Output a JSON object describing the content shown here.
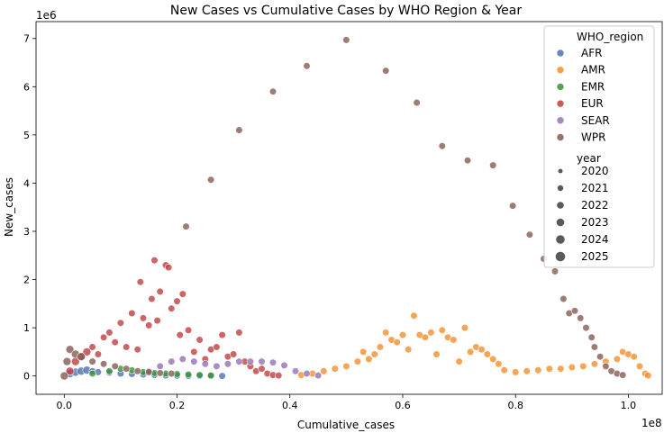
{
  "chart_data": {
    "type": "scatter",
    "title": "New Cases vs Cumulative Cases by WHO Region & Year",
    "xlabel": "Cumulative_cases",
    "ylabel": "New_cases",
    "x_offset_label": "1e8",
    "y_offset_label": "1e6",
    "xlim": [
      -0.05,
      1.06
    ],
    "ylim": [
      -0.38,
      7.35
    ],
    "x_ticks": [
      0.0,
      0.2,
      0.4,
      0.6,
      0.8,
      1.0
    ],
    "x_tick_labels": [
      "0.0",
      "0.2",
      "0.4",
      "0.6",
      "0.8",
      "1.0"
    ],
    "y_ticks": [
      0,
      1,
      2,
      3,
      4,
      5,
      6,
      7
    ],
    "y_tick_labels": [
      "0",
      "1",
      "2",
      "3",
      "4",
      "5",
      "6",
      "7"
    ],
    "grid": false,
    "legend_placement": "top-right",
    "legend": {
      "hue_title": "WHO_region",
      "hue_entries": [
        {
          "label": "AFR",
          "color": "#4c72b0"
        },
        {
          "label": "AMR",
          "color": "#f28e2b"
        },
        {
          "label": "EMR",
          "color": "#3a923a"
        },
        {
          "label": "EUR",
          "color": "#c03d3e"
        },
        {
          "label": "SEAR",
          "color": "#9372b2"
        },
        {
          "label": "WPR",
          "color": "#845b53"
        }
      ],
      "size_title": "year",
      "size_entries": [
        {
          "label": "2020",
          "size": 2.5
        },
        {
          "label": "2021",
          "size": 3.2
        },
        {
          "label": "2022",
          "size": 3.8
        },
        {
          "label": "2023",
          "size": 4.3
        },
        {
          "label": "2024",
          "size": 4.8
        },
        {
          "label": "2025",
          "size": 5.3
        }
      ]
    },
    "series": [
      {
        "name": "AFR",
        "color": "#4c72b0",
        "points": [
          [
            0.01,
            0.05
          ],
          [
            0.02,
            0.08
          ],
          [
            0.03,
            0.1
          ],
          [
            0.04,
            0.12
          ],
          [
            0.05,
            0.1
          ],
          [
            0.06,
            0.08
          ],
          [
            0.08,
            0.07
          ],
          [
            0.1,
            0.05
          ],
          [
            0.12,
            0.04
          ],
          [
            0.14,
            0.03
          ],
          [
            0.16,
            0.02
          ],
          [
            0.18,
            0.01
          ],
          [
            0.2,
            0.005
          ],
          [
            0.22,
            0.0
          ],
          [
            0.24,
            0.0
          ],
          [
            0.26,
            0.0
          ],
          [
            0.28,
            0.0
          ]
        ]
      },
      {
        "name": "AMR",
        "color": "#f28e2b",
        "points": [
          [
            0.42,
            0.02
          ],
          [
            0.44,
            0.05
          ],
          [
            0.46,
            0.1
          ],
          [
            0.48,
            0.15
          ],
          [
            0.5,
            0.2
          ],
          [
            0.52,
            0.3
          ],
          [
            0.53,
            0.5
          ],
          [
            0.54,
            0.35
          ],
          [
            0.55,
            0.45
          ],
          [
            0.56,
            0.6
          ],
          [
            0.57,
            0.9
          ],
          [
            0.58,
            0.75
          ],
          [
            0.59,
            0.7
          ],
          [
            0.6,
            0.85
          ],
          [
            0.61,
            0.55
          ],
          [
            0.62,
            1.25
          ],
          [
            0.63,
            0.85
          ],
          [
            0.64,
            0.8
          ],
          [
            0.65,
            0.9
          ],
          [
            0.66,
            0.45
          ],
          [
            0.67,
            0.95
          ],
          [
            0.68,
            0.8
          ],
          [
            0.69,
            0.75
          ],
          [
            0.7,
            0.3
          ],
          [
            0.71,
            1.0
          ],
          [
            0.72,
            0.5
          ],
          [
            0.73,
            0.6
          ],
          [
            0.74,
            0.55
          ],
          [
            0.75,
            0.45
          ],
          [
            0.76,
            0.35
          ],
          [
            0.77,
            0.25
          ],
          [
            0.78,
            0.12
          ],
          [
            0.8,
            0.08
          ],
          [
            0.82,
            0.1
          ],
          [
            0.84,
            0.12
          ],
          [
            0.86,
            0.15
          ],
          [
            0.88,
            0.15
          ],
          [
            0.9,
            0.18
          ],
          [
            0.92,
            0.2
          ],
          [
            0.94,
            0.25
          ],
          [
            0.96,
            0.3
          ],
          [
            0.98,
            0.35
          ],
          [
            0.99,
            0.5
          ],
          [
            1.0,
            0.45
          ],
          [
            1.01,
            0.4
          ],
          [
            1.02,
            0.2
          ],
          [
            1.03,
            0.05
          ],
          [
            1.035,
            0.01
          ]
        ]
      },
      {
        "name": "EMR",
        "color": "#3a923a",
        "points": [
          [
            0.05,
            0.05
          ],
          [
            0.08,
            0.1
          ],
          [
            0.1,
            0.15
          ],
          [
            0.12,
            0.12
          ],
          [
            0.14,
            0.08
          ],
          [
            0.16,
            0.06
          ],
          [
            0.18,
            0.05
          ],
          [
            0.2,
            0.04
          ],
          [
            0.22,
            0.03
          ],
          [
            0.24,
            0.02
          ],
          [
            0.26,
            0.01
          ]
        ]
      },
      {
        "name": "EUR",
        "color": "#c03d3e",
        "points": [
          [
            0.01,
            0.1
          ],
          [
            0.02,
            0.3
          ],
          [
            0.03,
            0.4
          ],
          [
            0.04,
            0.5
          ],
          [
            0.05,
            0.6
          ],
          [
            0.06,
            0.45
          ],
          [
            0.07,
            0.8
          ],
          [
            0.08,
            0.9
          ],
          [
            0.09,
            0.7
          ],
          [
            0.1,
            1.1
          ],
          [
            0.11,
            0.6
          ],
          [
            0.12,
            1.3
          ],
          [
            0.13,
            0.55
          ],
          [
            0.135,
            1.95
          ],
          [
            0.14,
            1.2
          ],
          [
            0.15,
            1.05
          ],
          [
            0.155,
            1.6
          ],
          [
            0.16,
            2.4
          ],
          [
            0.165,
            1.15
          ],
          [
            0.17,
            1.75
          ],
          [
            0.18,
            2.3
          ],
          [
            0.185,
            2.25
          ],
          [
            0.19,
            1.4
          ],
          [
            0.2,
            1.55
          ],
          [
            0.205,
            0.85
          ],
          [
            0.21,
            1.7
          ],
          [
            0.22,
            0.95
          ],
          [
            0.23,
            0.5
          ],
          [
            0.24,
            0.75
          ],
          [
            0.25,
            0.35
          ],
          [
            0.26,
            0.55
          ],
          [
            0.27,
            0.6
          ],
          [
            0.28,
            0.85
          ],
          [
            0.29,
            0.4
          ],
          [
            0.3,
            0.45
          ],
          [
            0.31,
            0.9
          ],
          [
            0.32,
            0.3
          ],
          [
            0.33,
            0.2
          ],
          [
            0.34,
            0.1
          ],
          [
            0.35,
            0.15
          ],
          [
            0.36,
            0.05
          ],
          [
            0.37,
            0.02
          ],
          [
            0.38,
            0.01
          ]
        ]
      },
      {
        "name": "SEAR",
        "color": "#9372b2",
        "points": [
          [
            0.15,
            0.1
          ],
          [
            0.17,
            0.2
          ],
          [
            0.19,
            0.3
          ],
          [
            0.21,
            0.35
          ],
          [
            0.23,
            0.3
          ],
          [
            0.25,
            0.25
          ],
          [
            0.27,
            0.2
          ],
          [
            0.29,
            0.25
          ],
          [
            0.31,
            0.3
          ],
          [
            0.33,
            0.3
          ],
          [
            0.35,
            0.3
          ],
          [
            0.37,
            0.28
          ],
          [
            0.39,
            0.22
          ],
          [
            0.41,
            0.1
          ],
          [
            0.43,
            0.05
          ],
          [
            0.45,
            0.01
          ]
        ]
      },
      {
        "name": "WPR",
        "color": "#845b53",
        "points": [
          [
            0.0,
            0.0
          ],
          [
            0.005,
            0.3
          ],
          [
            0.01,
            0.55
          ],
          [
            0.02,
            0.45
          ],
          [
            0.03,
            0.4
          ],
          [
            0.05,
            0.3
          ],
          [
            0.07,
            0.25
          ],
          [
            0.09,
            0.2
          ],
          [
            0.11,
            0.15
          ],
          [
            0.13,
            0.1
          ],
          [
            0.15,
            0.08
          ],
          [
            0.17,
            0.06
          ],
          [
            0.19,
            0.05
          ],
          [
            0.216,
            3.1
          ],
          [
            0.26,
            4.07
          ],
          [
            0.31,
            5.1
          ],
          [
            0.37,
            5.9
          ],
          [
            0.43,
            6.43
          ],
          [
            0.5,
            6.97
          ],
          [
            0.57,
            6.33
          ],
          [
            0.625,
            5.67
          ],
          [
            0.67,
            4.77
          ],
          [
            0.715,
            4.47
          ],
          [
            0.76,
            4.37
          ],
          [
            0.795,
            3.53
          ],
          [
            0.825,
            2.93
          ],
          [
            0.85,
            2.43
          ],
          [
            0.87,
            2.17
          ],
          [
            0.885,
            1.6
          ],
          [
            0.895,
            1.3
          ],
          [
            0.905,
            1.35
          ],
          [
            0.915,
            1.2
          ],
          [
            0.925,
            1.0
          ],
          [
            0.935,
            0.8
          ],
          [
            0.94,
            0.6
          ],
          [
            0.95,
            0.4
          ],
          [
            0.96,
            0.2
          ],
          [
            0.97,
            0.1
          ],
          [
            0.98,
            0.05
          ],
          [
            0.99,
            0.02
          ]
        ]
      }
    ]
  }
}
